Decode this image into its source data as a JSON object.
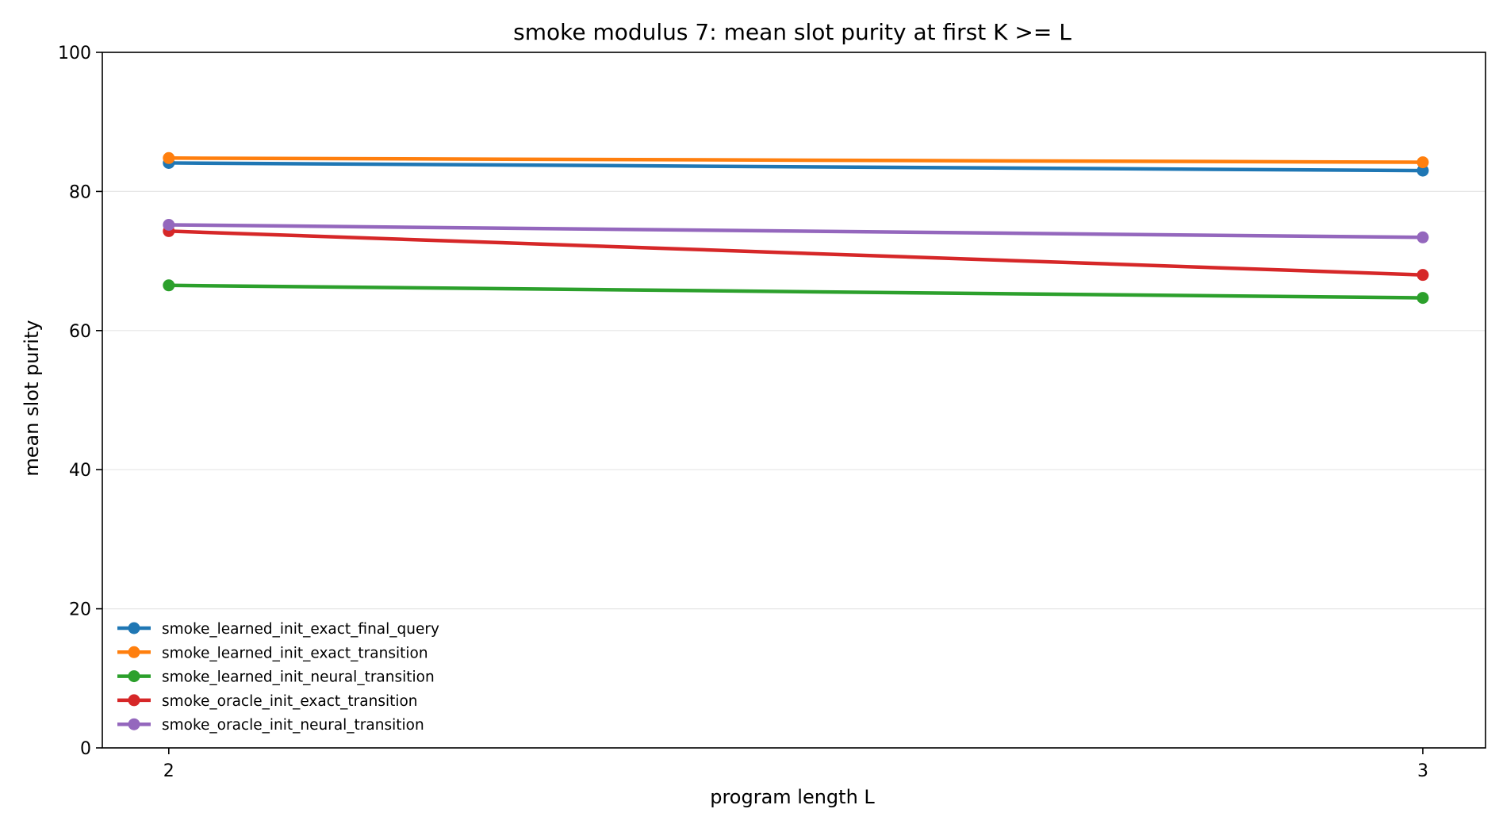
{
  "chart_data": {
    "type": "line",
    "title": "smoke modulus 7: mean slot purity at first K >= L",
    "xlabel": "program length L",
    "ylabel": "mean slot purity",
    "x": [
      2,
      3
    ],
    "x_tick_labels": [
      "2",
      "3"
    ],
    "xlim": [
      1.947,
      3.05
    ],
    "ylim": [
      0,
      100
    ],
    "y_ticks": [
      0,
      20,
      40,
      60,
      80,
      100
    ],
    "y_tick_labels": [
      "0",
      "20",
      "40",
      "60",
      "80",
      "100"
    ],
    "grid": "horizontal",
    "legend_position": "lower-left",
    "series": [
      {
        "name": "smoke_learned_init_exact_final_query",
        "color": "#1f77b4",
        "values": [
          84.1,
          83.0
        ]
      },
      {
        "name": "smoke_learned_init_exact_transition",
        "color": "#ff7f0e",
        "values": [
          84.8,
          84.2
        ]
      },
      {
        "name": "smoke_learned_init_neural_transition",
        "color": "#2ca02c",
        "values": [
          66.5,
          64.7
        ]
      },
      {
        "name": "smoke_oracle_init_exact_transition",
        "color": "#d62728",
        "values": [
          74.3,
          68.0
        ]
      },
      {
        "name": "smoke_oracle_init_neural_transition",
        "color": "#9467bd",
        "values": [
          75.2,
          73.4
        ]
      }
    ]
  }
}
